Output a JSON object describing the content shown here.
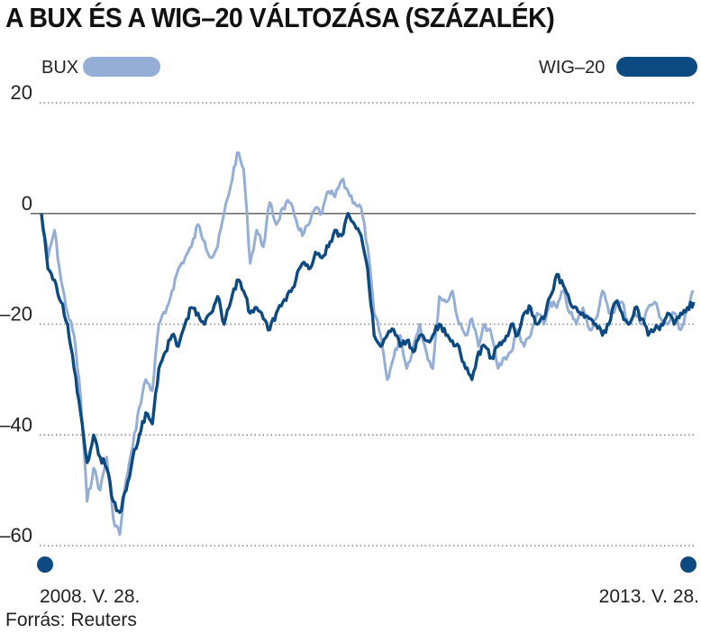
{
  "title": "A BUX ÉS A WIG–20 VÁLTOZÁSA (SZÁZALÉK)",
  "source": "Forrás: Reuters",
  "colors": {
    "bux": "#94aed6",
    "wig20": "#0d4a82",
    "grid": "#888888",
    "zero": "#666666"
  },
  "chart_data": {
    "type": "line",
    "title": "A BUX ÉS A WIG–20 VÁLTOZÁSA (SZÁZALÉK)",
    "x_start_label": "2008. V. 28.",
    "x_end_label": "2013. V. 28.",
    "ylim": [
      -63,
      22
    ],
    "yticks": [
      "20",
      "0",
      "–20",
      "–40",
      "–60"
    ],
    "ytick_values": [
      20,
      0,
      -20,
      -40,
      -60
    ],
    "grid": true,
    "legend": "top",
    "series": [
      {
        "name": "BUX",
        "color": "#94aed6",
        "x_fraction": [
          0,
          0.01,
          0.02,
          0.03,
          0.04,
          0.05,
          0.06,
          0.07,
          0.08,
          0.09,
          0.1,
          0.11,
          0.12,
          0.13,
          0.14,
          0.15,
          0.16,
          0.17,
          0.18,
          0.19,
          0.2,
          0.21,
          0.22,
          0.23,
          0.24,
          0.25,
          0.26,
          0.27,
          0.28,
          0.29,
          0.3,
          0.31,
          0.32,
          0.33,
          0.34,
          0.35,
          0.36,
          0.37,
          0.38,
          0.39,
          0.4,
          0.41,
          0.42,
          0.43,
          0.44,
          0.45,
          0.46,
          0.47,
          0.48,
          0.49,
          0.5,
          0.51,
          0.52,
          0.53,
          0.54,
          0.55,
          0.56,
          0.57,
          0.58,
          0.59,
          0.6,
          0.61,
          0.62,
          0.63,
          0.64,
          0.65,
          0.66,
          0.67,
          0.68,
          0.69,
          0.7,
          0.71,
          0.72,
          0.73,
          0.74,
          0.75,
          0.76,
          0.77,
          0.78,
          0.79,
          0.8,
          0.81,
          0.82,
          0.83,
          0.84,
          0.85,
          0.86,
          0.87,
          0.88,
          0.89,
          0.9,
          0.91,
          0.92,
          0.93,
          0.94,
          0.95,
          0.96,
          0.97,
          0.98,
          0.99,
          1.0
        ],
        "values": [
          0,
          -8,
          -3,
          -12,
          -18,
          -22,
          -33,
          -52,
          -46,
          -50,
          -44,
          -55,
          -58,
          -48,
          -42,
          -35,
          -30,
          -32,
          -20,
          -18,
          -14,
          -10,
          -8,
          -6,
          -2,
          -5,
          -8,
          -6,
          0,
          5,
          11,
          8,
          -9,
          -3,
          -6,
          2,
          -2,
          1,
          2,
          -1,
          -4,
          -2,
          1,
          0,
          4,
          3,
          6,
          4,
          2,
          1,
          -6,
          -18,
          -22,
          -30,
          -26,
          -22,
          -28,
          -24,
          -20,
          -25,
          -28,
          -15,
          -16,
          -14,
          -20,
          -22,
          -19,
          -24,
          -20,
          -22,
          -28,
          -26,
          -25,
          -21,
          -24,
          -22,
          -18,
          -20,
          -16,
          -17,
          -14,
          -18,
          -20,
          -17,
          -21,
          -19,
          -14,
          -18,
          -17,
          -16,
          -20,
          -18,
          -20,
          -17,
          -16,
          -19,
          -20,
          -18,
          -21,
          -17,
          -14
        ]
      },
      {
        "name": "WIG–20",
        "color": "#0d4a82",
        "x_fraction": [
          0,
          0.01,
          0.02,
          0.03,
          0.04,
          0.05,
          0.06,
          0.07,
          0.08,
          0.09,
          0.1,
          0.11,
          0.12,
          0.13,
          0.14,
          0.15,
          0.16,
          0.17,
          0.18,
          0.19,
          0.2,
          0.21,
          0.22,
          0.23,
          0.24,
          0.25,
          0.26,
          0.27,
          0.28,
          0.29,
          0.3,
          0.31,
          0.32,
          0.33,
          0.34,
          0.35,
          0.36,
          0.37,
          0.38,
          0.39,
          0.4,
          0.41,
          0.42,
          0.43,
          0.44,
          0.45,
          0.46,
          0.47,
          0.48,
          0.49,
          0.5,
          0.51,
          0.52,
          0.53,
          0.54,
          0.55,
          0.56,
          0.57,
          0.58,
          0.59,
          0.6,
          0.61,
          0.62,
          0.63,
          0.64,
          0.65,
          0.66,
          0.67,
          0.68,
          0.69,
          0.7,
          0.71,
          0.72,
          0.73,
          0.74,
          0.75,
          0.76,
          0.77,
          0.78,
          0.79,
          0.8,
          0.81,
          0.82,
          0.83,
          0.84,
          0.85,
          0.86,
          0.87,
          0.88,
          0.89,
          0.9,
          0.91,
          0.92,
          0.93,
          0.94,
          0.95,
          0.96,
          0.97,
          0.98,
          0.99,
          1.0
        ],
        "values": [
          0,
          -10,
          -12,
          -16,
          -20,
          -28,
          -36,
          -45,
          -40,
          -44,
          -46,
          -52,
          -54,
          -50,
          -44,
          -40,
          -36,
          -38,
          -28,
          -25,
          -22,
          -24,
          -20,
          -17,
          -18,
          -20,
          -18,
          -15,
          -20,
          -16,
          -12,
          -14,
          -18,
          -17,
          -19,
          -21,
          -18,
          -16,
          -14,
          -12,
          -9,
          -10,
          -7,
          -8,
          -6,
          -3,
          -4,
          0,
          -2,
          -4,
          -10,
          -22,
          -24,
          -22,
          -21,
          -24,
          -23,
          -25,
          -22,
          -23,
          -22,
          -20,
          -22,
          -23,
          -24,
          -28,
          -30,
          -25,
          -24,
          -26,
          -24,
          -23,
          -20,
          -22,
          -18,
          -17,
          -20,
          -19,
          -15,
          -11,
          -13,
          -16,
          -17,
          -18,
          -19,
          -20,
          -22,
          -20,
          -16,
          -18,
          -20,
          -17,
          -19,
          -22,
          -21,
          -20,
          -18,
          -20,
          -18,
          -17,
          -16
        ]
      }
    ]
  }
}
